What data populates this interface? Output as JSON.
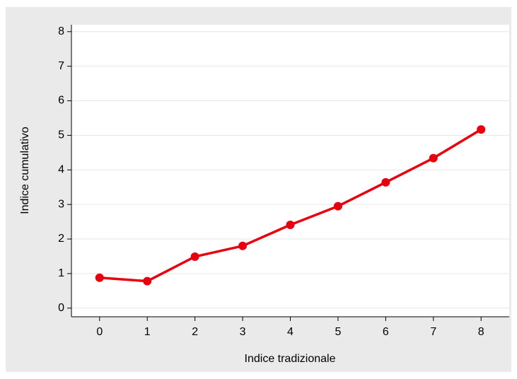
{
  "chart_data": {
    "type": "line",
    "xlabel": "Indice tradizionale",
    "ylabel": "Indice cumulativo",
    "x": [
      0,
      1,
      2,
      3,
      4,
      5,
      6,
      7,
      8
    ],
    "series": [
      {
        "color": "#e8000e",
        "values": [
          0.88,
          0.78,
          1.49,
          1.8,
          2.41,
          2.95,
          3.64,
          4.34,
          5.17
        ]
      }
    ],
    "xlim": [
      -0.59,
      8.59
    ],
    "xticks": [
      0,
      1,
      2,
      3,
      4,
      5,
      6,
      7,
      8
    ],
    "ylim": [
      -0.25,
      8.2
    ],
    "yticks": [
      0,
      1,
      2,
      3,
      4,
      5,
      6,
      7,
      8
    ],
    "grid": true
  }
}
